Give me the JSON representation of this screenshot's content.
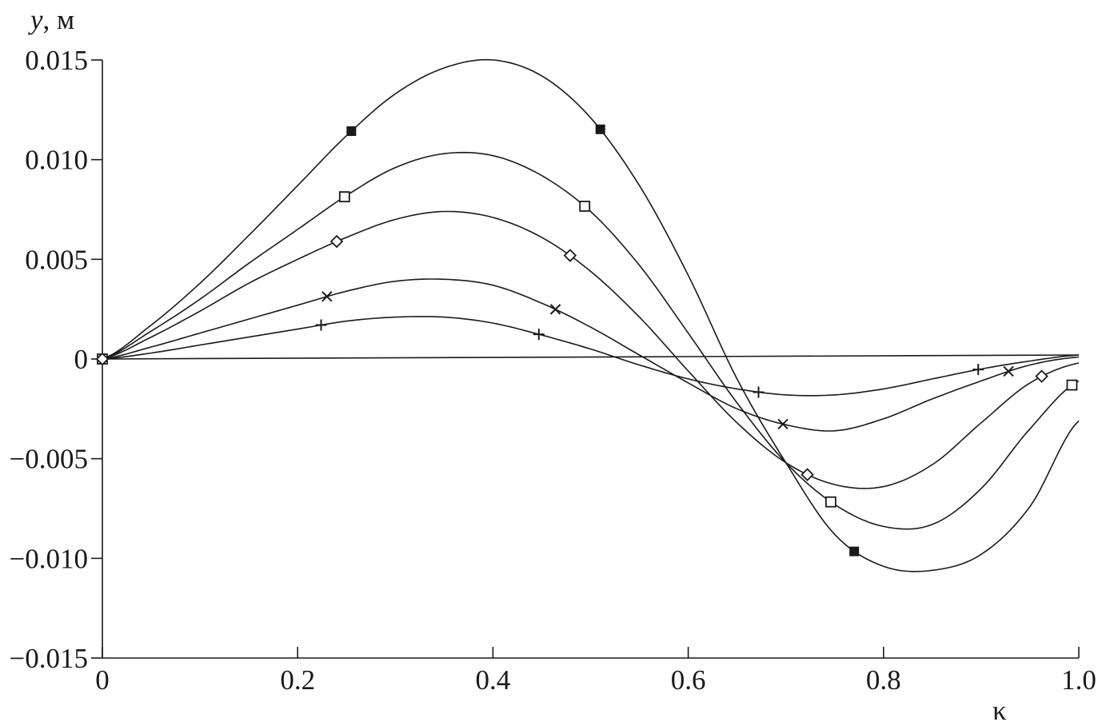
{
  "chart_data": {
    "type": "line",
    "title": "",
    "xlabel": "κ",
    "ylabel_var": "y",
    "ylabel_unit": ", м",
    "xlim": [
      0,
      1.0
    ],
    "ylim": [
      -0.015,
      0.015
    ],
    "grid": false,
    "legend": "none",
    "x_ticks": [
      0,
      0.2,
      0.4,
      0.6,
      0.8,
      1.0
    ],
    "x_tick_labels": [
      "0",
      "0.2",
      "0.4",
      "0.6",
      "0.8",
      "1.0"
    ],
    "y_ticks": [
      0.015,
      0.01,
      0.005,
      0,
      -0.005,
      -0.01,
      -0.015
    ],
    "y_tick_labels": [
      "0.015",
      "0.010",
      "0.005",
      "0",
      "−0.005",
      "−0.010",
      "−0.015"
    ],
    "series": [
      {
        "marker": "filled-square",
        "x": [
          0,
          0.05,
          0.1,
          0.15,
          0.2,
          0.25,
          0.3,
          0.35,
          0.4,
          0.45,
          0.5,
          0.55,
          0.6,
          0.65,
          0.7,
          0.75,
          0.8,
          0.85,
          0.9,
          0.95,
          1.0
        ],
        "y": [
          0,
          0.0017,
          0.0038,
          0.0062,
          0.0087,
          0.0112,
          0.0133,
          0.0146,
          0.015,
          0.0142,
          0.0121,
          0.0087,
          0.0042,
          -0.001,
          -0.0052,
          -0.0088,
          -0.0104,
          -0.0106,
          -0.0098,
          -0.0074,
          -0.0031
        ],
        "marker_x": [
          0,
          0.255,
          0.51,
          0.77
        ]
      },
      {
        "marker": "hollow-square",
        "x": [
          0,
          0.05,
          0.1,
          0.15,
          0.2,
          0.25,
          0.3,
          0.35,
          0.4,
          0.45,
          0.5,
          0.55,
          0.6,
          0.65,
          0.7,
          0.75,
          0.8,
          0.85,
          0.9,
          0.95,
          1.0
        ],
        "y": [
          0,
          0.0014,
          0.003,
          0.0048,
          0.0065,
          0.0082,
          0.0096,
          0.0103,
          0.0102,
          0.0092,
          0.0074,
          0.0047,
          0.0013,
          -0.0022,
          -0.0052,
          -0.0073,
          -0.0084,
          -0.0083,
          -0.0065,
          -0.0035,
          -0.0011
        ],
        "marker_x": [
          0,
          0.248,
          0.494,
          0.746,
          0.993
        ]
      },
      {
        "marker": "hollow-diamond",
        "x": [
          0,
          0.05,
          0.1,
          0.15,
          0.2,
          0.25,
          0.3,
          0.35,
          0.4,
          0.45,
          0.5,
          0.55,
          0.6,
          0.65,
          0.7,
          0.75,
          0.8,
          0.85,
          0.9,
          0.95,
          1.0
        ],
        "y": [
          0,
          0.0011,
          0.0024,
          0.0038,
          0.005,
          0.0061,
          0.007,
          0.0074,
          0.0071,
          0.0061,
          0.0044,
          0.0021,
          -0.0006,
          -0.0032,
          -0.0052,
          -0.0063,
          -0.0064,
          -0.0053,
          -0.0032,
          -0.0012,
          -0.0002
        ],
        "marker_x": [
          0,
          0.24,
          0.479,
          0.722,
          0.962
        ]
      },
      {
        "marker": "cross-x",
        "x": [
          0,
          0.05,
          0.1,
          0.15,
          0.2,
          0.25,
          0.3,
          0.35,
          0.4,
          0.45,
          0.5,
          0.55,
          0.6,
          0.65,
          0.7,
          0.75,
          0.8,
          0.85,
          0.9,
          0.95,
          1.0
        ],
        "y": [
          0,
          0.0006,
          0.0013,
          0.002,
          0.0027,
          0.0034,
          0.0039,
          0.004,
          0.0037,
          0.0028,
          0.0016,
          0.0002,
          -0.0012,
          -0.0025,
          -0.0033,
          -0.0036,
          -0.003,
          -0.002,
          -0.0011,
          -0.0003,
          0.0001
        ],
        "marker_x": [
          0.23,
          0.464,
          0.697,
          0.928
        ]
      },
      {
        "marker": "plus",
        "x": [
          0,
          0.05,
          0.1,
          0.15,
          0.2,
          0.25,
          0.3,
          0.35,
          0.4,
          0.45,
          0.5,
          0.55,
          0.6,
          0.65,
          0.7,
          0.75,
          0.8,
          0.85,
          0.9,
          0.95,
          1.0
        ],
        "y": [
          0,
          0.0003,
          0.0007,
          0.0011,
          0.0015,
          0.0019,
          0.0021,
          0.0021,
          0.0018,
          0.0012,
          0.0005,
          -0.0003,
          -0.001,
          -0.0015,
          -0.0018,
          -0.0018,
          -0.0015,
          -0.001,
          -0.0005,
          -0.0001,
          0.0002
        ],
        "marker_x": [
          0.224,
          0.447,
          0.672,
          0.897
        ]
      },
      {
        "marker": "none",
        "x": [
          0,
          1.0
        ],
        "y": [
          0,
          0.0002
        ],
        "marker_x": []
      }
    ]
  }
}
